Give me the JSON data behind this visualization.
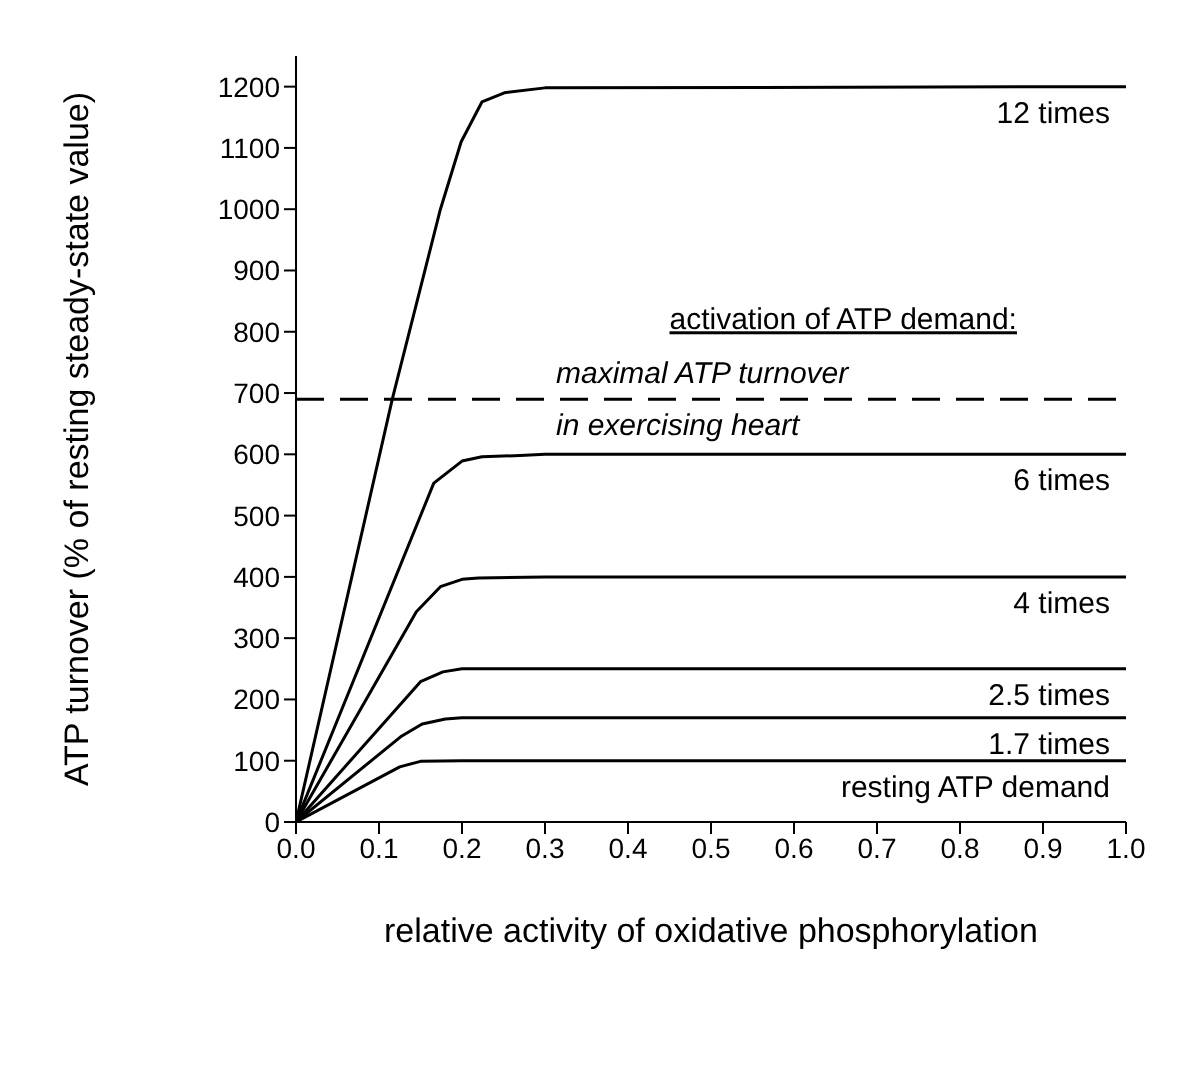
{
  "chart_data": {
    "type": "line",
    "xlabel": "relative activity of oxidative phosphorylation",
    "ylabel": "ATP turnover (% of resting steady-state value)",
    "xlim": [
      0,
      1
    ],
    "xticks": [
      {
        "value": 0,
        "label": "0.0"
      },
      0.1,
      0.2,
      0.3,
      0.4,
      0.5,
      0.6,
      0.7,
      0.8,
      0.9,
      {
        "value": 1,
        "label": "1.0"
      }
    ],
    "ylim": [
      0,
      1250
    ],
    "yticks": [
      0,
      100,
      200,
      300,
      400,
      500,
      600,
      700,
      800,
      900,
      1000,
      1100,
      1200
    ],
    "marker": "none",
    "line_style": "solid",
    "series": [
      {
        "name": "12 times",
        "color": "#000000",
        "x": [
          0,
          0.116,
          0.174,
          0.199,
          0.224,
          0.251,
          0.3,
          1
        ],
        "values": [
          0,
          690,
          1000,
          1110,
          1175,
          1190,
          1198,
          1200
        ]
      },
      {
        "name": "6 times",
        "color": "#000000",
        "x": [
          0,
          0.166,
          0.2,
          0.224,
          0.27,
          0.3,
          1
        ],
        "values": [
          0,
          553,
          589,
          596,
          598,
          600,
          600
        ]
      },
      {
        "name": "4 times",
        "color": "#000000",
        "x": [
          0,
          0.145,
          0.174,
          0.2,
          0.22,
          0.3,
          1
        ],
        "values": [
          0,
          343,
          384,
          396,
          398,
          400,
          400
        ]
      },
      {
        "name": "2.5 times",
        "color": "#000000",
        "x": [
          0,
          0.15,
          0.177,
          0.2,
          1
        ],
        "values": [
          0,
          229,
          245,
          250,
          250
        ]
      },
      {
        "name": "1.7 times",
        "color": "#000000",
        "x": [
          0,
          0.126,
          0.152,
          0.18,
          0.2,
          1
        ],
        "values": [
          0,
          139,
          160,
          168,
          170,
          170
        ]
      },
      {
        "name": "resting ATP demand",
        "color": "#000000",
        "x": [
          0,
          0.125,
          0.15,
          0.2,
          1
        ],
        "values": [
          0,
          90,
          99,
          100,
          100
        ]
      }
    ],
    "ref_lines": [
      {
        "axis": "y",
        "value": 690,
        "label": "maximal ATP turnover\nin exercising heart",
        "color": "#000000",
        "line_style": "dashed"
      }
    ],
    "annotations": [
      "activation of ATP demand:"
    ]
  }
}
